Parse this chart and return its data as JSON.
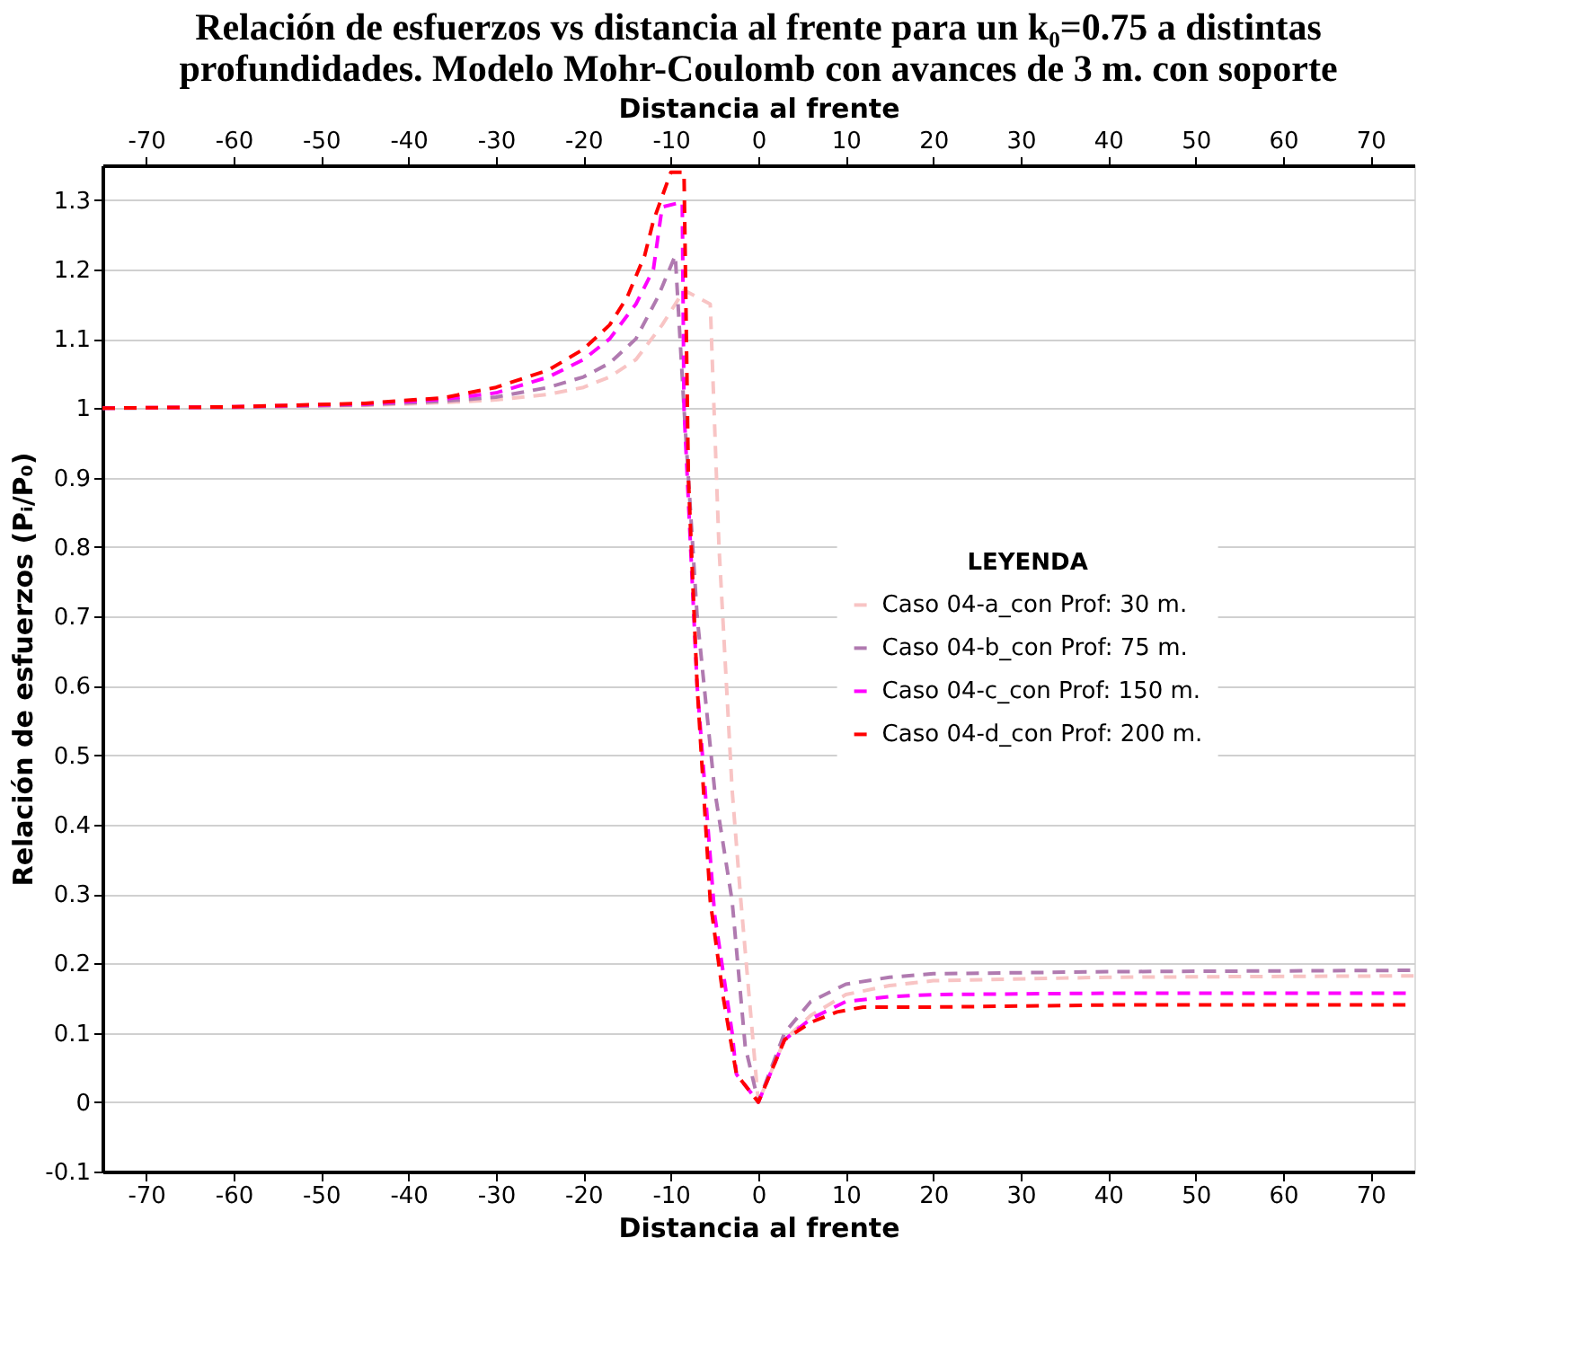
{
  "chart_data": {
    "type": "line",
    "title": [
      "Relación de esfuerzos vs distancia al frente para un k₀=0.75 a distintas",
      "profundidades. Modelo Mohr-Coulomb con avances de 3 m. con soporte"
    ],
    "xlabel": "Distancia al frente",
    "x2label": "Distancia al frente",
    "ylabel": "Relación de esfuerzos (Pᵢ/P₀)",
    "legend_title": "LEYENDA",
    "xlim": [
      -75,
      75
    ],
    "xticks": [
      -70,
      -60,
      -50,
      -40,
      -30,
      -20,
      -10,
      0,
      10,
      20,
      30,
      40,
      50,
      60,
      70
    ],
    "x2lim": [
      -75,
      75
    ],
    "x2ticks": [
      -70,
      -60,
      -50,
      -40,
      -30,
      -20,
      -10,
      0,
      10,
      20,
      30,
      40,
      50,
      60,
      70
    ],
    "ylim": [
      -0.1,
      1.35
    ],
    "yticks": [
      -0.1,
      0,
      0.1,
      0.2,
      0.3,
      0.4,
      0.5,
      0.6,
      0.7,
      0.8,
      0.9,
      1,
      1.1,
      1.2,
      1.3
    ],
    "grid": "y",
    "legend": "right",
    "line_style": "dashed",
    "marker": "none",
    "series": [
      {
        "name": "Caso 04-a_con Prof: 30 m.",
        "color": "#f8c4c4",
        "x": [
          -75,
          -60,
          -45,
          -36,
          -30,
          -24,
          -20,
          -17,
          -14,
          -11,
          -8.5,
          -5.5,
          -4.5,
          -3,
          -2,
          0,
          3,
          6,
          10,
          15,
          20,
          40,
          75
        ],
        "values": [
          1.0,
          1.001,
          1.004,
          1.008,
          1.012,
          1.02,
          1.03,
          1.045,
          1.07,
          1.12,
          1.17,
          1.15,
          0.8,
          0.45,
          0.29,
          0,
          0.09,
          0.125,
          0.155,
          0.168,
          0.175,
          0.18,
          0.182
        ]
      },
      {
        "name": "Caso 04-b_con Prof: 75 m.",
        "color": "#b07ab0",
        "x": [
          -75,
          -60,
          -45,
          -36,
          -30,
          -24,
          -20,
          -17,
          -14,
          -11.5,
          -9.5,
          -8.5,
          -7,
          -5,
          -3,
          -1.5,
          0,
          3,
          6,
          10,
          15,
          20,
          40,
          75
        ],
        "values": [
          1.0,
          1.001,
          1.005,
          1.01,
          1.016,
          1.03,
          1.045,
          1.065,
          1.1,
          1.16,
          1.22,
          1.0,
          0.7,
          0.45,
          0.29,
          0.08,
          0,
          0.1,
          0.145,
          0.17,
          0.18,
          0.185,
          0.188,
          0.19
        ]
      },
      {
        "name": "Caso 04-c_con Prof: 150 m.",
        "color": "#ff00ff",
        "x": [
          -75,
          -60,
          -45,
          -36,
          -30,
          -24,
          -20,
          -17,
          -14,
          -12,
          -11,
          -8.7,
          -8.5,
          -7,
          -5,
          -3,
          -2.5,
          0,
          3,
          6,
          10,
          15,
          20,
          40,
          75
        ],
        "values": [
          1.0,
          1.002,
          1.006,
          1.013,
          1.022,
          1.045,
          1.07,
          1.1,
          1.15,
          1.2,
          1.29,
          1.297,
          1.0,
          0.6,
          0.27,
          0.1,
          0.04,
          0,
          0.09,
          0.12,
          0.145,
          0.152,
          0.155,
          0.157,
          0.157
        ]
      },
      {
        "name": "Caso 04-d_con Prof: 200 m.",
        "color": "#ff0000",
        "x": [
          -75,
          -60,
          -45,
          -36,
          -30,
          -24,
          -20,
          -17,
          -15,
          -13,
          -12,
          -10,
          -8.5,
          -8,
          -7,
          -5.5,
          -4,
          -2.5,
          0,
          3,
          6,
          9,
          12,
          20,
          40,
          75
        ],
        "values": [
          1.0,
          1.002,
          1.007,
          1.015,
          1.03,
          1.055,
          1.085,
          1.12,
          1.16,
          1.22,
          1.27,
          1.34,
          1.34,
          0.9,
          0.6,
          0.29,
          0.15,
          0.04,
          0,
          0.09,
          0.115,
          0.13,
          0.137,
          0.137,
          0.14,
          0.14
        ]
      }
    ]
  }
}
